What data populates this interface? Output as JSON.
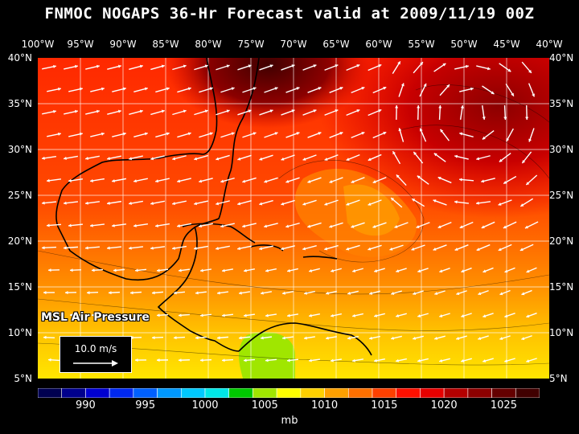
{
  "title": "FNMOC NOGAPS 36-Hr Forecast valid at 2009/11/19 00Z",
  "lon_labels": [
    "100°W",
    "95°W",
    "90°W",
    "85°W",
    "80°W",
    "75°W",
    "70°W",
    "65°W",
    "60°W",
    "55°W",
    "50°W",
    "45°W",
    "40°W"
  ],
  "lat_labels": [
    "40°N",
    "35°N",
    "30°N",
    "25°N",
    "20°N",
    "15°N",
    "10°N",
    "5°N"
  ],
  "field_label": "MSL Air Pressure",
  "reference_vector": "10.0 m/s",
  "colorbar": {
    "colors": [
      "#000050",
      "#00008c",
      "#0000d0",
      "#0028f0",
      "#0060ff",
      "#0098ff",
      "#00c8ff",
      "#00e6e6",
      "#00c800",
      "#a0e600",
      "#ffff00",
      "#ffd000",
      "#ffa000",
      "#ff7000",
      "#ff4000",
      "#ff1000",
      "#e60000",
      "#b40000",
      "#8c0000",
      "#640000",
      "#400000"
    ],
    "tick_labels": [
      "990",
      "995",
      "1000",
      "1005",
      "1010",
      "1015",
      "1020",
      "1025"
    ],
    "unit": "mb"
  },
  "colors": {
    "ocean_high": "#ff3a00",
    "land": "#000000",
    "arrow": "#ffffff"
  }
}
